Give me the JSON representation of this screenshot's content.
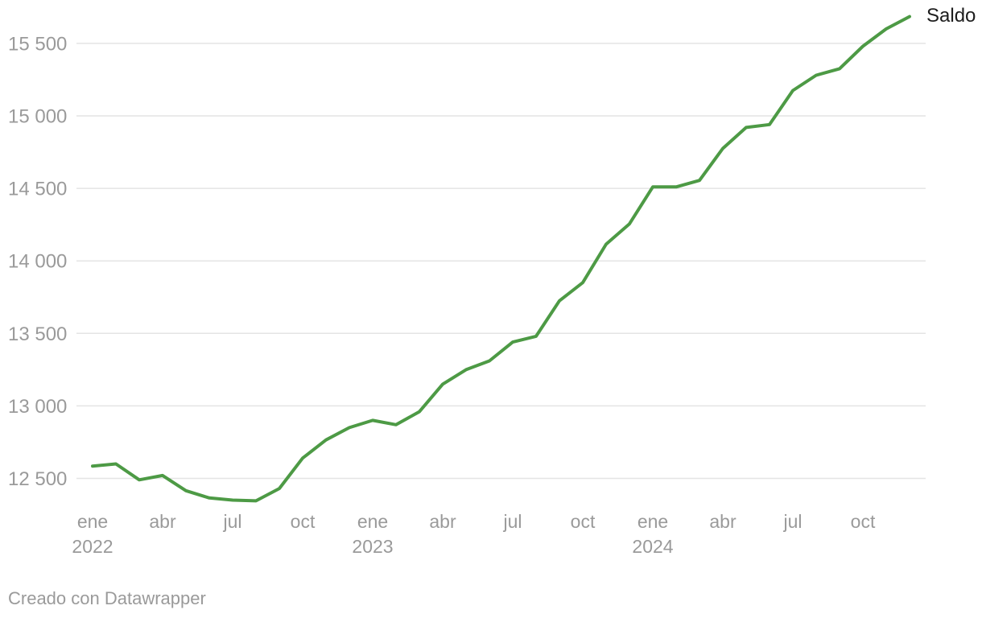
{
  "chart_data": {
    "type": "line",
    "title": "",
    "legend_position": "end-of-line",
    "grid": "horizontal",
    "categories": [
      "ene 2022",
      "feb 2022",
      "mar 2022",
      "abr 2022",
      "may 2022",
      "jun 2022",
      "jul 2022",
      "ago 2022",
      "sep 2022",
      "oct 2022",
      "nov 2022",
      "dic 2022",
      "ene 2023",
      "feb 2023",
      "mar 2023",
      "abr 2023",
      "may 2023",
      "jun 2023",
      "jul 2023",
      "ago 2023",
      "sep 2023",
      "oct 2023",
      "nov 2023",
      "dic 2023",
      "ene 2024",
      "feb 2024",
      "mar 2024",
      "abr 2024",
      "may 2024",
      "jun 2024",
      "jul 2024",
      "ago 2024",
      "sep 2024",
      "oct 2024",
      "nov 2024",
      "dic 2024"
    ],
    "series": [
      {
        "name": "Saldo",
        "values": [
          12585,
          12600,
          12490,
          12520,
          12415,
          12365,
          12350,
          12345,
          12430,
          12640,
          12765,
          12850,
          12900,
          12870,
          12960,
          13150,
          13250,
          13310,
          13440,
          13480,
          13725,
          13850,
          14115,
          14255,
          14510,
          14510,
          14555,
          14775,
          14920,
          14940,
          15175,
          15280,
          15325,
          15480,
          15600,
          15685
        ]
      }
    ],
    "y_axis": {
      "range": [
        12300,
        15700
      ],
      "ticks": [
        {
          "value": 12500,
          "label": "12 500"
        },
        {
          "value": 13000,
          "label": "13 000"
        },
        {
          "value": 13500,
          "label": "13 500"
        },
        {
          "value": 14000,
          "label": "14 000"
        },
        {
          "value": 14500,
          "label": "14 500"
        },
        {
          "value": 15000,
          "label": "15 000"
        },
        {
          "value": 15500,
          "label": "15 500"
        }
      ]
    },
    "x_axis": {
      "ticks": [
        {
          "month_index": 0,
          "label": "ene",
          "year": "2022"
        },
        {
          "month_index": 3,
          "label": "abr",
          "year": ""
        },
        {
          "month_index": 6,
          "label": "jul",
          "year": ""
        },
        {
          "month_index": 9,
          "label": "oct",
          "year": ""
        },
        {
          "month_index": 12,
          "label": "ene",
          "year": "2023"
        },
        {
          "month_index": 15,
          "label": "abr",
          "year": ""
        },
        {
          "month_index": 18,
          "label": "jul",
          "year": ""
        },
        {
          "month_index": 21,
          "label": "oct",
          "year": ""
        },
        {
          "month_index": 24,
          "label": "ene",
          "year": "2024"
        },
        {
          "month_index": 27,
          "label": "abr",
          "year": ""
        },
        {
          "month_index": 30,
          "label": "jul",
          "year": ""
        },
        {
          "month_index": 33,
          "label": "oct",
          "year": ""
        }
      ]
    }
  },
  "colors": {
    "line": "#4d9a45",
    "grid": "#e4e4e4",
    "tick_text": "#9a9a9a",
    "series_label_text": "#1d1d1d",
    "footer_text": "#9a9a9a",
    "background": "#ffffff"
  },
  "footer": {
    "text": "Creado con Datawrapper"
  }
}
